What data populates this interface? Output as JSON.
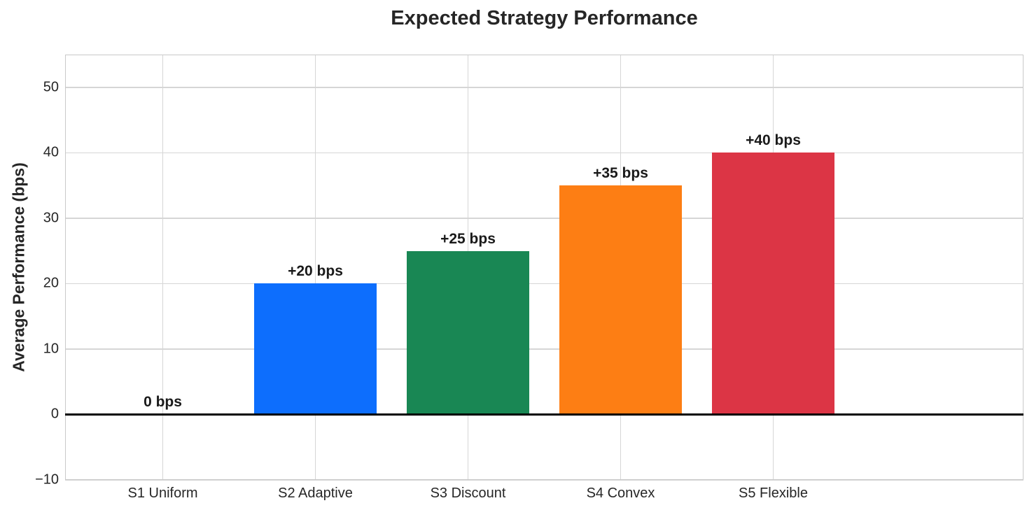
{
  "chart_data": {
    "type": "bar",
    "title": "Expected Strategy Performance",
    "xlabel": "",
    "ylabel": "Average Performance (bps)",
    "categories": [
      "S1 Uniform",
      "S2 Adaptive",
      "S3 Discount",
      "S4 Convex",
      "S5 Flexible"
    ],
    "values": [
      0,
      20,
      25,
      35,
      40
    ],
    "bar_labels": [
      "0 bps",
      "+20 bps",
      "+25 bps",
      "+35 bps",
      "+40 bps"
    ],
    "bar_colors": [
      null,
      "#0d6efd",
      "#198754",
      "#fd7e14",
      "#dc3545"
    ],
    "ylim": [
      -10,
      55
    ],
    "yticks": [
      {
        "value": 50,
        "label": "50"
      },
      {
        "value": 40,
        "label": "40"
      },
      {
        "value": 30,
        "label": "30"
      },
      {
        "value": 20,
        "label": "20"
      },
      {
        "value": 10,
        "label": "10"
      },
      {
        "value": 0,
        "label": "0"
      },
      {
        "value": -10,
        "label": "−10"
      }
    ],
    "bar_width_fraction": 0.8,
    "x_padding_units": 0.64,
    "grid": true,
    "legend": "none",
    "zero_baseline": true,
    "colors": {
      "grid": "#d6d6d6",
      "plot_border": "#c9c9c9",
      "zero_line": "#000000",
      "text": "#262626",
      "background": "#ffffff"
    }
  }
}
